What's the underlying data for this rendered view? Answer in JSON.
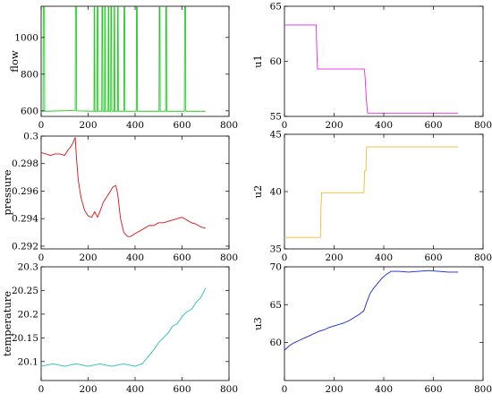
{
  "chart_data": [
    {
      "type": "line",
      "ylabel": "flow",
      "xlabel": "",
      "xlim": [
        0,
        800
      ],
      "ylim": [
        570,
        1170
      ],
      "xticks": [
        "0",
        "200",
        "400",
        "600",
        "800"
      ],
      "yticks": [
        "600",
        "800",
        "1000"
      ],
      "series": [
        {
          "color": "#22cc22",
          "values": [
            [
              0,
              598
            ],
            [
              8,
              598
            ],
            [
              9,
              1165
            ],
            [
              14,
              1165
            ],
            [
              15,
              598
            ],
            [
              145,
              602
            ],
            [
              146,
              1165
            ],
            [
              150,
              1165
            ],
            [
              151,
              600
            ],
            [
              225,
              598
            ],
            [
              226,
              1165
            ],
            [
              228,
              1165
            ],
            [
              229,
              598
            ],
            [
              238,
              598
            ],
            [
              239,
              1165
            ],
            [
              242,
              1165
            ],
            [
              243,
              598
            ],
            [
              258,
              598
            ],
            [
              259,
              1165
            ],
            [
              262,
              1165
            ],
            [
              263,
              598
            ],
            [
              270,
              598
            ],
            [
              271,
              1165
            ],
            [
              273,
              1165
            ],
            [
              274,
              598
            ],
            [
              285,
              598
            ],
            [
              286,
              1165
            ],
            [
              288,
              1165
            ],
            [
              289,
              598
            ],
            [
              296,
              598
            ],
            [
              297,
              1165
            ],
            [
              300,
              1165
            ],
            [
              301,
              598
            ],
            [
              310,
              598
            ],
            [
              311,
              1165
            ],
            [
              313,
              1165
            ],
            [
              314,
              598
            ],
            [
              325,
              598
            ],
            [
              326,
              1165
            ],
            [
              328,
              1165
            ],
            [
              329,
              598
            ],
            [
              352,
              598
            ],
            [
              353,
              1165
            ],
            [
              356,
              1165
            ],
            [
              357,
              598
            ],
            [
              405,
              598
            ],
            [
              406,
              1165
            ],
            [
              409,
              1165
            ],
            [
              410,
              598
            ],
            [
              502,
              598
            ],
            [
              503,
              1165
            ],
            [
              506,
              1165
            ],
            [
              507,
              598
            ],
            [
              530,
              598
            ],
            [
              531,
              1165
            ],
            [
              534,
              1165
            ],
            [
              535,
              598
            ],
            [
              610,
              598
            ],
            [
              611,
              1165
            ],
            [
              615,
              1165
            ],
            [
              616,
              598
            ],
            [
              700,
              598
            ]
          ]
        }
      ]
    },
    {
      "type": "line",
      "ylabel": "u1",
      "xlabel": "",
      "xlim": [
        0,
        800
      ],
      "ylim": [
        55,
        65
      ],
      "xticks": [
        "0",
        "200",
        "400",
        "600",
        "800"
      ],
      "yticks": [
        "55",
        "60",
        "65"
      ],
      "series": [
        {
          "color": "#ee22ee",
          "values": [
            [
              0,
              63.3
            ],
            [
              128,
              63.3
            ],
            [
              130,
              61.2
            ],
            [
              133,
              59.3
            ],
            [
              322,
              59.3
            ],
            [
              325,
              58.5
            ],
            [
              330,
              56.5
            ],
            [
              335,
              55.3
            ],
            [
              700,
              55.3
            ]
          ]
        }
      ]
    },
    {
      "type": "line",
      "ylabel": "pressure",
      "xlabel": "",
      "xlim": [
        0,
        800
      ],
      "ylim": [
        0.2918,
        0.3
      ],
      "xticks": [
        "0",
        "200",
        "400",
        "600",
        "800"
      ],
      "yticks": [
        "0.292",
        "0.294",
        "0.296",
        "0.298",
        "0.3"
      ],
      "series": [
        {
          "color": "#dd1111",
          "values": [
            [
              0,
              0.2988
            ],
            [
              20,
              0.2987
            ],
            [
              40,
              0.2986
            ],
            [
              60,
              0.2987
            ],
            [
              80,
              0.2987
            ],
            [
              100,
              0.2986
            ],
            [
              115,
              0.299
            ],
            [
              125,
              0.2992
            ],
            [
              135,
              0.2995
            ],
            [
              145,
              0.2999
            ],
            [
              150,
              0.2985
            ],
            [
              158,
              0.2968
            ],
            [
              170,
              0.2955
            ],
            [
              185,
              0.2946
            ],
            [
              200,
              0.2942
            ],
            [
              215,
              0.2941
            ],
            [
              228,
              0.2945
            ],
            [
              240,
              0.2941
            ],
            [
              252,
              0.2946
            ],
            [
              265,
              0.2952
            ],
            [
              280,
              0.2956
            ],
            [
              295,
              0.296
            ],
            [
              305,
              0.2963
            ],
            [
              318,
              0.2964
            ],
            [
              326,
              0.2958
            ],
            [
              338,
              0.294
            ],
            [
              352,
              0.293
            ],
            [
              368,
              0.2927
            ],
            [
              382,
              0.2927
            ],
            [
              398,
              0.2929
            ],
            [
              420,
              0.2931
            ],
            [
              440,
              0.2933
            ],
            [
              460,
              0.2935
            ],
            [
              480,
              0.2935
            ],
            [
              500,
              0.2937
            ],
            [
              520,
              0.2937
            ],
            [
              540,
              0.2938
            ],
            [
              560,
              0.2939
            ],
            [
              580,
              0.294
            ],
            [
              600,
              0.2941
            ],
            [
              620,
              0.2939
            ],
            [
              640,
              0.2937
            ],
            [
              660,
              0.2936
            ],
            [
              680,
              0.2934
            ],
            [
              700,
              0.2933
            ]
          ]
        }
      ]
    },
    {
      "type": "line",
      "ylabel": "u2",
      "xlabel": "",
      "xlim": [
        0,
        800
      ],
      "ylim": [
        35,
        45
      ],
      "xticks": [
        "0",
        "200",
        "400",
        "600",
        "800"
      ],
      "yticks": [
        "35",
        "40",
        "45"
      ],
      "series": [
        {
          "color": "#eebb33",
          "values": [
            [
              0,
              36
            ],
            [
              145,
              36
            ],
            [
              147,
              38.5
            ],
            [
              150,
              39.9
            ],
            [
              320,
              39.9
            ],
            [
              323,
              41.8
            ],
            [
              328,
              41.8
            ],
            [
              331,
              43.9
            ],
            [
              700,
              43.9
            ]
          ]
        }
      ]
    },
    {
      "type": "line",
      "ylabel": "temperature",
      "xlabel": "",
      "xlim": [
        0,
        800
      ],
      "ylim": [
        20.06,
        20.3
      ],
      "xticks": [
        "0",
        "200",
        "400",
        "600",
        "800"
      ],
      "yticks": [
        "20.1",
        "20.15",
        "20.2",
        "20.25",
        "20.3"
      ],
      "series": [
        {
          "color": "#22bbbb",
          "values": [
            [
              0,
              20.09
            ],
            [
              50,
              20.095
            ],
            [
              100,
              20.09
            ],
            [
              150,
              20.095
            ],
            [
              200,
              20.09
            ],
            [
              250,
              20.095
            ],
            [
              300,
              20.09
            ],
            [
              350,
              20.095
            ],
            [
              400,
              20.09
            ],
            [
              430,
              20.095
            ],
            [
              455,
              20.11
            ],
            [
              480,
              20.125
            ],
            [
              500,
              20.14
            ],
            [
              520,
              20.15
            ],
            [
              540,
              20.16
            ],
            [
              560,
              20.175
            ],
            [
              580,
              20.18
            ],
            [
              600,
              20.195
            ],
            [
              620,
              20.205
            ],
            [
              640,
              20.21
            ],
            [
              660,
              20.225
            ],
            [
              680,
              20.235
            ],
            [
              700,
              20.255
            ]
          ]
        }
      ]
    },
    {
      "type": "line",
      "ylabel": "u3",
      "xlabel": "",
      "xlim": [
        0,
        800
      ],
      "ylim": [
        55,
        70
      ],
      "xticks": [
        "0",
        "200",
        "400",
        "600",
        "800"
      ],
      "yticks": [
        "60",
        "65",
        "70"
      ],
      "series": [
        {
          "color": "#1122dd",
          "values": [
            [
              0,
              59
            ],
            [
              20,
              59.6
            ],
            [
              40,
              60
            ],
            [
              60,
              60.3
            ],
            [
              80,
              60.6
            ],
            [
              100,
              60.9
            ],
            [
              120,
              61.2
            ],
            [
              140,
              61.5
            ],
            [
              160,
              61.7
            ],
            [
              180,
              62
            ],
            [
              200,
              62.2
            ],
            [
              220,
              62.4
            ],
            [
              240,
              62.6
            ],
            [
              260,
              62.9
            ],
            [
              280,
              63.3
            ],
            [
              300,
              63.7
            ],
            [
              320,
              64.2
            ],
            [
              330,
              65.2
            ],
            [
              345,
              66.5
            ],
            [
              360,
              67.2
            ],
            [
              375,
              67.8
            ],
            [
              390,
              68.4
            ],
            [
              410,
              69
            ],
            [
              430,
              69.4
            ],
            [
              460,
              69.4
            ],
            [
              500,
              69.3
            ],
            [
              540,
              69.4
            ],
            [
              580,
              69.5
            ],
            [
              620,
              69.4
            ],
            [
              660,
              69.3
            ],
            [
              700,
              69.3
            ]
          ]
        }
      ]
    }
  ]
}
